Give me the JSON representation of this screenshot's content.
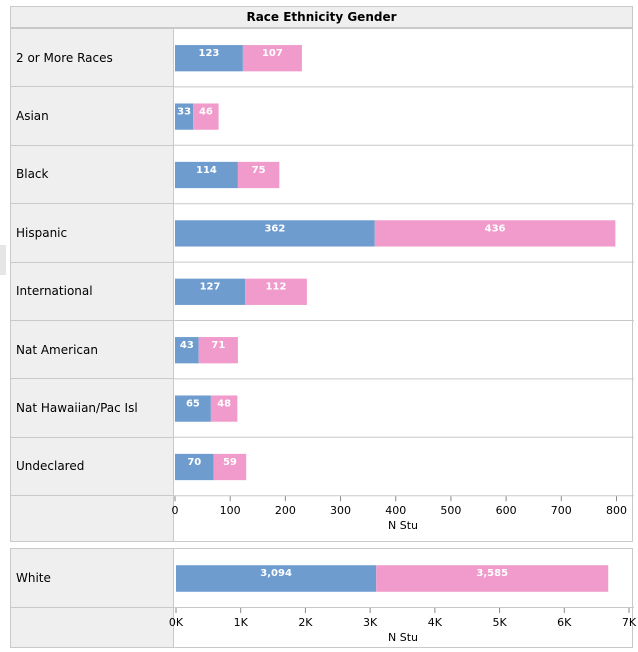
{
  "title": "Race Ethnicity Gender",
  "chart_data": [
    {
      "type": "bar",
      "orientation": "horizontal",
      "stacked": true,
      "categories": [
        "2 or More Races",
        "Asian",
        "Black",
        "Hispanic",
        "International",
        "Nat American",
        "Nat Hawaiian/Pac Isl",
        "Undeclared"
      ],
      "series": [
        {
          "values": [
            123,
            33,
            114,
            362,
            127,
            43,
            65,
            70
          ],
          "labels": [
            "123",
            "33",
            "114",
            "362",
            "127",
            "43",
            "65",
            "70"
          ],
          "color": "#6f9ccf"
        },
        {
          "values": [
            107,
            46,
            75,
            436,
            112,
            71,
            48,
            59
          ],
          "labels": [
            "107",
            "46",
            "75",
            "436",
            "112",
            "71",
            "48",
            "59"
          ],
          "color": "#f09bcb"
        }
      ],
      "xlabel": "N Stu",
      "xlim": [
        0,
        810
      ],
      "xticks": [
        0,
        100,
        200,
        300,
        400,
        500,
        600,
        700,
        800
      ],
      "xtick_labels": [
        "0",
        "100",
        "200",
        "300",
        "400",
        "500",
        "600",
        "700",
        "800"
      ]
    },
    {
      "type": "bar",
      "orientation": "horizontal",
      "stacked": true,
      "categories": [
        "White"
      ],
      "series": [
        {
          "values": [
            3094
          ],
          "labels": [
            "3,094"
          ],
          "color": "#6f9ccf"
        },
        {
          "values": [
            3585
          ],
          "labels": [
            "3,585"
          ],
          "color": "#f09bcb"
        }
      ],
      "xlabel": "N Stu",
      "xlim": [
        0,
        7000
      ],
      "xticks": [
        0,
        1000,
        2000,
        3000,
        4000,
        5000,
        6000,
        7000
      ],
      "xtick_labels": [
        "0K",
        "1K",
        "2K",
        "3K",
        "4K",
        "5K",
        "6K",
        "7K"
      ]
    }
  ]
}
